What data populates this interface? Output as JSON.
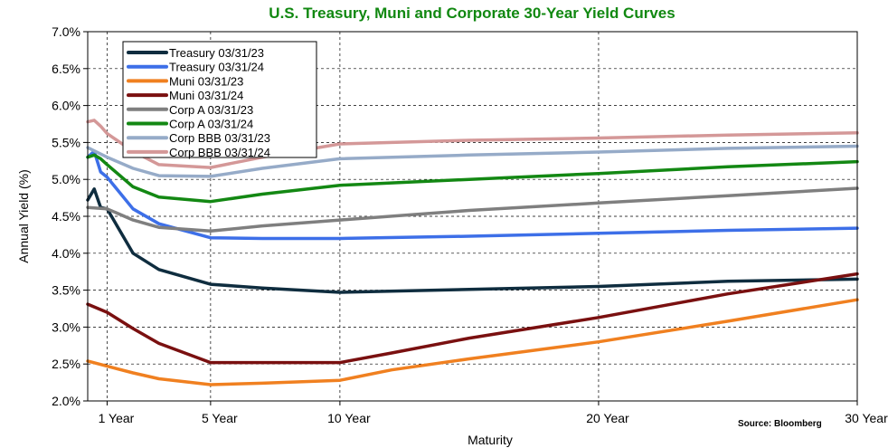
{
  "chart_data": {
    "type": "line",
    "title": "U.S. Treasury, Muni and Corporate 30-Year Yield Curves",
    "title_color": "#118811",
    "xlabel": "Maturity",
    "ylabel": "Annual Yield (%)",
    "source": "Source: Bloomberg",
    "xlim": [
      0.25,
      30
    ],
    "ylim": [
      2.0,
      7.0
    ],
    "x_ticks": [
      {
        "x": 1,
        "label": "1 Year"
      },
      {
        "x": 5,
        "label": "5 Year"
      },
      {
        "x": 10,
        "label": "10 Year"
      },
      {
        "x": 20,
        "label": "20 Year"
      },
      {
        "x": 30,
        "label": "30 Year"
      }
    ],
    "y_ticks": [
      {
        "y": 2.0,
        "label": "2.0%"
      },
      {
        "y": 2.5,
        "label": "2.5%"
      },
      {
        "y": 3.0,
        "label": "3.0%"
      },
      {
        "y": 3.5,
        "label": "3.5%"
      },
      {
        "y": 4.0,
        "label": "4.0%"
      },
      {
        "y": 4.5,
        "label": "4.5%"
      },
      {
        "y": 5.0,
        "label": "5.0%"
      },
      {
        "y": 5.5,
        "label": "5.5%"
      },
      {
        "y": 6.0,
        "label": "6.0%"
      },
      {
        "y": 6.5,
        "label": "6.5%"
      },
      {
        "y": 7.0,
        "label": "7.0%"
      }
    ],
    "grid": "dashed, both axes",
    "legend_position": "top-left",
    "series": [
      {
        "name": "Treasury 03/31/23",
        "color": "#0f2d3f",
        "x": [
          0.25,
          0.5,
          0.75,
          1,
          2,
          3,
          5,
          7,
          10,
          15,
          20,
          25,
          30
        ],
        "y": [
          4.72,
          4.87,
          4.62,
          4.6,
          4.0,
          3.78,
          3.58,
          3.53,
          3.47,
          3.51,
          3.55,
          3.62,
          3.65
        ]
      },
      {
        "name": "Treasury 03/31/24",
        "color": "#3d6fe8",
        "x": [
          0.25,
          0.5,
          0.75,
          1,
          2,
          3,
          5,
          7,
          10,
          15,
          20,
          25,
          30
        ],
        "y": [
          5.3,
          5.38,
          5.1,
          5.03,
          4.6,
          4.4,
          4.21,
          4.2,
          4.2,
          4.23,
          4.27,
          4.31,
          4.34
        ]
      },
      {
        "name": "Muni 03/31/23",
        "color": "#f08020",
        "x": [
          0.25,
          1,
          2,
          3,
          5,
          7,
          10,
          12,
          15,
          20,
          25,
          30
        ],
        "y": [
          2.54,
          2.47,
          2.38,
          2.3,
          2.22,
          2.24,
          2.28,
          2.42,
          2.57,
          2.8,
          3.08,
          3.37
        ]
      },
      {
        "name": "Muni 03/31/24",
        "color": "#7a1010",
        "x": [
          0.25,
          1,
          2,
          3,
          5,
          7,
          10,
          12,
          15,
          20,
          25,
          30
        ],
        "y": [
          3.31,
          3.2,
          2.98,
          2.78,
          2.52,
          2.52,
          2.52,
          2.65,
          2.85,
          3.13,
          3.45,
          3.72
        ]
      },
      {
        "name": "Corp A 03/31/23",
        "color": "#7f7f7f",
        "x": [
          0.25,
          1,
          2,
          3,
          5,
          7,
          10,
          15,
          20,
          25,
          30
        ],
        "y": [
          4.62,
          4.6,
          4.45,
          4.35,
          4.3,
          4.37,
          4.45,
          4.58,
          4.68,
          4.78,
          4.88
        ]
      },
      {
        "name": "Corp A 03/31/24",
        "color": "#138813",
        "x": [
          0.25,
          0.5,
          0.75,
          1,
          2,
          3,
          5,
          7,
          10,
          15,
          20,
          25,
          30
        ],
        "y": [
          5.3,
          5.33,
          5.28,
          5.2,
          4.9,
          4.76,
          4.7,
          4.8,
          4.92,
          5.0,
          5.08,
          5.17,
          5.24
        ]
      },
      {
        "name": "Corp BBB 03/31/23",
        "color": "#96abc8",
        "x": [
          0.25,
          1,
          2,
          3,
          5,
          7,
          10,
          15,
          20,
          25,
          30
        ],
        "y": [
          5.43,
          5.3,
          5.15,
          5.05,
          5.04,
          5.15,
          5.28,
          5.33,
          5.37,
          5.42,
          5.45
        ]
      },
      {
        "name": "Corp BBB 03/31/24",
        "color": "#d49898",
        "x": [
          0.25,
          0.5,
          0.75,
          1,
          2,
          3,
          5,
          7,
          10,
          15,
          20,
          25,
          30
        ],
        "y": [
          5.78,
          5.8,
          5.72,
          5.62,
          5.38,
          5.2,
          5.16,
          5.3,
          5.48,
          5.53,
          5.56,
          5.6,
          5.63
        ]
      }
    ]
  }
}
